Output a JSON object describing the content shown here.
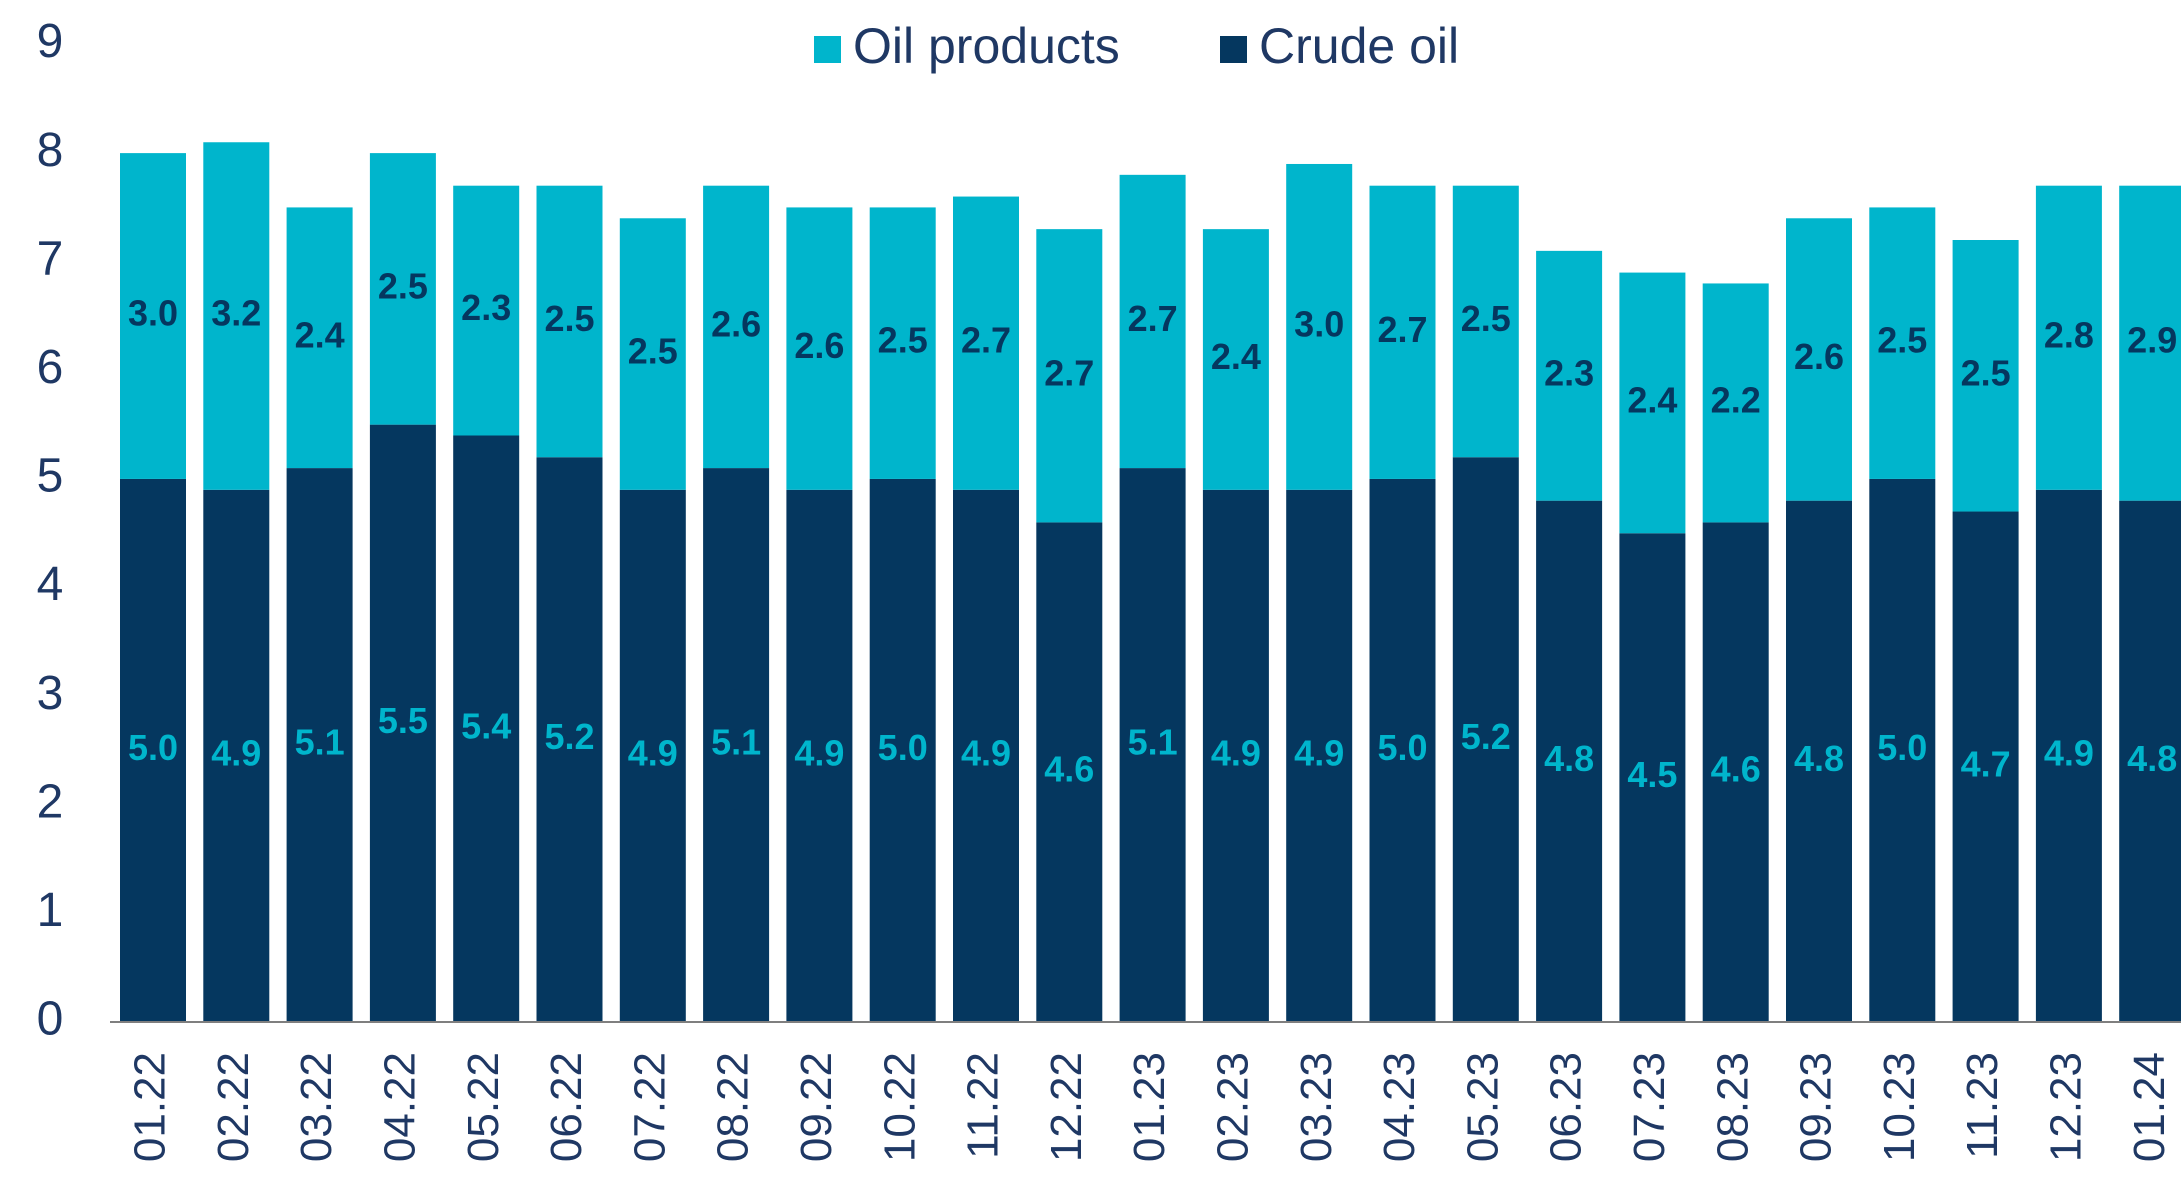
{
  "chart_data": {
    "type": "stacked_bar",
    "categories": [
      "01.22",
      "02.22",
      "03.22",
      "04.22",
      "05.22",
      "06.22",
      "07.22",
      "08.22",
      "09.22",
      "10.22",
      "11.22",
      "12.22",
      "01.23",
      "02.23",
      "03.23",
      "04.23",
      "05.23",
      "06.23",
      "07.23",
      "08.23",
      "09.23",
      "10.23",
      "11.23",
      "12.23",
      "01.24"
    ],
    "series": [
      {
        "name": "Crude oil",
        "color": "#05375f",
        "label_color": "#00b5cc",
        "values": [
          5.0,
          4.9,
          5.1,
          5.5,
          5.4,
          5.2,
          4.9,
          5.1,
          4.9,
          5.0,
          4.9,
          4.6,
          5.1,
          4.9,
          4.9,
          5.0,
          5.2,
          4.8,
          4.5,
          4.6,
          4.8,
          5.0,
          4.7,
          4.9,
          4.8
        ],
        "value_labels": [
          "5.0",
          "4.9",
          "5.1",
          "5.5",
          "5.4",
          "5.2",
          "4.9",
          "5.1",
          "4.9",
          "5.0",
          "4.9",
          "4.6",
          "5.1",
          "4.9",
          "4.9",
          "5.0",
          "5.2",
          "4.8",
          "4.5",
          "4.6",
          "4.8",
          "5.0",
          "4.7",
          "4.9",
          "4.8"
        ]
      },
      {
        "name": "Oil products",
        "color": "#00b5cc",
        "label_color": "#05375f",
        "values": [
          3.0,
          3.2,
          2.4,
          2.5,
          2.3,
          2.5,
          2.5,
          2.6,
          2.6,
          2.5,
          2.7,
          2.7,
          2.7,
          2.4,
          3.0,
          2.7,
          2.5,
          2.3,
          2.4,
          2.2,
          2.6,
          2.5,
          2.5,
          2.8,
          2.9
        ],
        "value_labels": [
          "3.0",
          "3.2",
          "2.4",
          "2.5",
          "2.3",
          "2.5",
          "2.5",
          "2.6",
          "2.6",
          "2.5",
          "2.7",
          "2.7",
          "2.7",
          "2.4",
          "3.0",
          "2.7",
          "2.5",
          "2.3",
          "2.4",
          "2.2",
          "2.6",
          "2.5",
          "2.5",
          "2.8",
          "2.9"
        ]
      }
    ],
    "ylim": [
      0,
      9
    ],
    "yticks": [
      0,
      1,
      2,
      3,
      4,
      5,
      6,
      7,
      8,
      9
    ],
    "grid": false
  }
}
